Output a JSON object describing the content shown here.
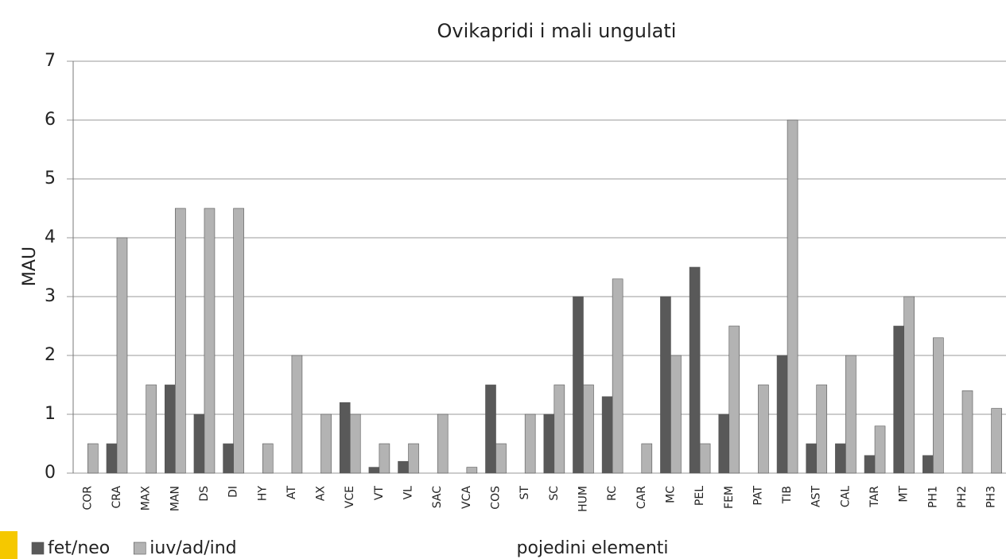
{
  "chart_data": {
    "type": "bar",
    "title": "Ovikapridi i mali ungulati",
    "y_label": "MAU",
    "x_label": "pojedini elementi",
    "categories": [
      "COR",
      "CRA",
      "MAX",
      "MAN",
      "DS",
      "DI",
      "HY",
      "AT",
      "AX",
      "VCE",
      "VT",
      "VL",
      "SAC",
      "VCA",
      "COS",
      "ST",
      "SC",
      "HUM",
      "RC",
      "CAR",
      "MC",
      "PEL",
      "FEM",
      "PAT",
      "TIB",
      "AST",
      "CAL",
      "TAR",
      "MT",
      "PH1",
      "PH2",
      "PH3"
    ],
    "series": [
      {
        "name": "fet/neo",
        "color": "#595959",
        "values": [
          0,
          0.5,
          0,
          1.5,
          1,
          0.5,
          0,
          0,
          0,
          1.2,
          0.1,
          0.2,
          0,
          0,
          1.5,
          0,
          1,
          3,
          1.3,
          0,
          3,
          3.5,
          1,
          0,
          2,
          0.5,
          0.5,
          0.3,
          2.5,
          0.3,
          0,
          0
        ]
      },
      {
        "name": "iuv/ad/ind",
        "color": "#b3b3b3",
        "values": [
          0.5,
          4,
          1.5,
          4.5,
          4.5,
          4.5,
          0.5,
          2,
          1,
          1,
          0.5,
          0.5,
          1,
          0.1,
          0.5,
          1,
          1.5,
          1.5,
          3.3,
          0.5,
          2,
          0.5,
          2.5,
          1.5,
          6,
          1.5,
          2,
          0.8,
          3,
          2.3,
          1.4,
          1.1
        ]
      }
    ],
    "ylim": [
      0,
      7
    ],
    "yticks": [
      0,
      1,
      2,
      3,
      4,
      5,
      6,
      7
    ],
    "grid": true,
    "legend": "bottom-left"
  }
}
